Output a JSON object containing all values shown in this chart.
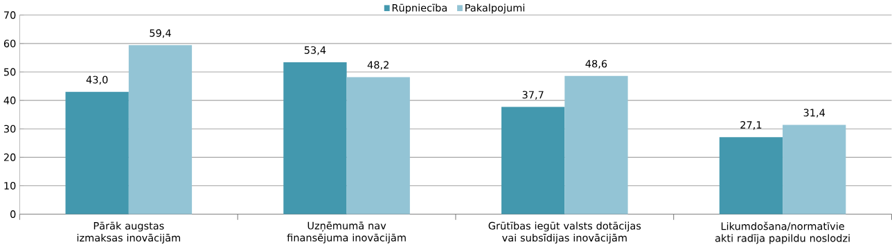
{
  "chart_data": {
    "type": "bar",
    "categories": [
      "Pārāk augstas izmaksas inovācijām",
      "Uzņēmumā nav finansējuma inovācijām",
      "Grūtības iegūt valsts dotācijas vai subsīdijas inovācijām",
      "Likumdošana/normatīvie akti radīja papildu noslodzi"
    ],
    "series": [
      {
        "name": "Rūpniecība",
        "color": "#4398ae",
        "values": [
          43.0,
          53.4,
          37.7,
          27.1
        ],
        "value_labels": [
          "43,0",
          "53,4",
          "37,7",
          "27,1"
        ]
      },
      {
        "name": "Pakalpojumi",
        "color": "#93c4d5",
        "values": [
          59.4,
          48.2,
          48.6,
          31.4
        ],
        "value_labels": [
          "59,4",
          "48,2",
          "48,6",
          "31,4"
        ]
      }
    ],
    "ylim": [
      0,
      70
    ],
    "yticks": [
      0,
      10,
      20,
      30,
      40,
      50,
      60,
      70
    ],
    "grid": "y",
    "legend": "top"
  }
}
